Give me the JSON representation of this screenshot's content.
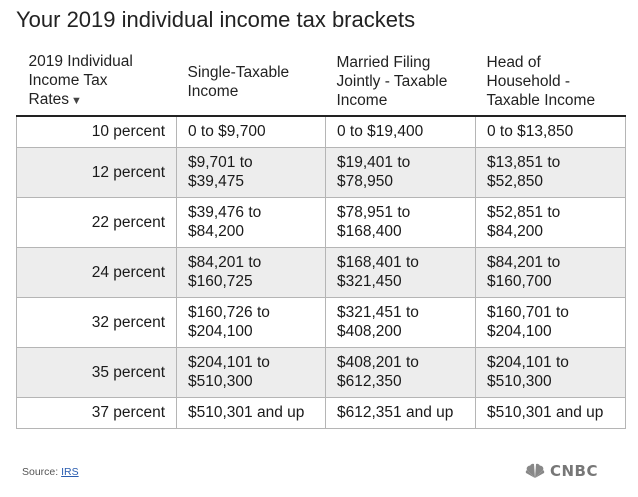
{
  "title": "Your 2019 individual income tax brackets",
  "table": {
    "headers": [
      {
        "line1": "2019 Individual",
        "line2": "Income Tax",
        "line3": "Rates"
      },
      {
        "line1": "Single-Taxable",
        "line2": "Income",
        "line3": ""
      },
      {
        "line1": "Married Filing",
        "line2": "Jointly - Taxable",
        "line3": "Income"
      },
      {
        "line1": "Head of",
        "line2": "Household -",
        "line3": "Taxable Income"
      }
    ],
    "sort_icon": "sort-down-icon",
    "rows": [
      {
        "rate": "10 percent",
        "single": [
          "0 to $9,700",
          ""
        ],
        "married": [
          "0 to $19,400",
          ""
        ],
        "head": [
          "0 to $13,850",
          ""
        ]
      },
      {
        "rate": "12 percent",
        "single": [
          "$9,701 to",
          "$39,475"
        ],
        "married": [
          "$19,401 to",
          "$78,950"
        ],
        "head": [
          "$13,851 to",
          "$52,850"
        ]
      },
      {
        "rate": "22 percent",
        "single": [
          "$39,476 to",
          "$84,200"
        ],
        "married": [
          "$78,951 to",
          "$168,400"
        ],
        "head": [
          "$52,851 to",
          "$84,200"
        ]
      },
      {
        "rate": "24 percent",
        "single": [
          "$84,201 to",
          "$160,725"
        ],
        "married": [
          "$168,401 to",
          "$321,450"
        ],
        "head": [
          "$84,201 to",
          "$160,700"
        ]
      },
      {
        "rate": "32 percent",
        "single": [
          "$160,726 to",
          "$204,100"
        ],
        "married": [
          "$321,451 to",
          "$408,200"
        ],
        "head": [
          "$160,701 to",
          "$204,100"
        ]
      },
      {
        "rate": "35 percent",
        "single": [
          "$204,101 to",
          "$510,300"
        ],
        "married": [
          "$408,201 to",
          "$612,350"
        ],
        "head": [
          "$204,101 to",
          "$510,300"
        ]
      },
      {
        "rate": "37 percent",
        "single": [
          "$510,301 and up",
          ""
        ],
        "married": [
          "$612,351 and up",
          ""
        ],
        "head": [
          "$510,301 and up",
          ""
        ]
      }
    ]
  },
  "source": {
    "label": "Source:",
    "link": "IRS"
  },
  "logo": {
    "text": "CNBC",
    "icon": "peacock-icon"
  },
  "colors": {
    "row_alt": "#ededed",
    "border": "#b5b5b5",
    "link": "#2a5db0",
    "logo": "#777777"
  }
}
